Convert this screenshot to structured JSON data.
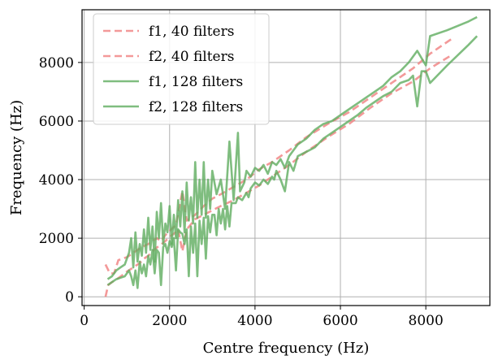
{
  "chart_data": {
    "type": "line",
    "xlabel": "Centre frequency (Hz)",
    "ylabel": "Frequency (Hz)",
    "xlim": [
      -50,
      9500
    ],
    "ylim": [
      -300,
      9800
    ],
    "xticks": [
      0,
      2000,
      4000,
      6000,
      8000
    ],
    "yticks": [
      0,
      2000,
      4000,
      6000,
      8000
    ],
    "xtick_labels": [
      "0",
      "2000",
      "4000",
      "6000",
      "8000"
    ],
    "ytick_labels": [
      "0",
      "2000",
      "4000",
      "6000",
      "8000"
    ],
    "grid": true,
    "legend_position": "top-left",
    "series": [
      {
        "name": "f1, 40 filters",
        "color": "#f08080",
        "style": "dashed",
        "points": [
          [
            500,
            0
          ],
          [
            560,
            400
          ],
          [
            650,
            500
          ],
          [
            760,
            600
          ],
          [
            880,
            720
          ],
          [
            1000,
            860
          ],
          [
            1150,
            1000
          ],
          [
            1300,
            1150
          ],
          [
            1400,
            1300
          ],
          [
            1500,
            1400
          ],
          [
            1600,
            1550
          ],
          [
            1700,
            1680
          ],
          [
            1800,
            1780
          ],
          [
            1900,
            1900
          ],
          [
            2000,
            2050
          ],
          [
            2100,
            2150
          ],
          [
            2200,
            2300
          ],
          [
            2300,
            1550
          ],
          [
            2400,
            2300
          ],
          [
            2600,
            2650
          ],
          [
            2800,
            2800
          ],
          [
            3000,
            2950
          ],
          [
            3200,
            3100
          ],
          [
            3500,
            3300
          ],
          [
            3800,
            3550
          ],
          [
            4100,
            3800
          ],
          [
            4400,
            4100
          ],
          [
            4800,
            4500
          ],
          [
            5200,
            4950
          ],
          [
            5700,
            5450
          ],
          [
            6200,
            5900
          ],
          [
            6700,
            6450
          ],
          [
            7200,
            6950
          ],
          [
            7700,
            7350
          ],
          [
            8100,
            7800
          ],
          [
            8600,
            8250
          ]
        ]
      },
      {
        "name": "f2, 40 filters",
        "color": "#f08080",
        "style": "dashed",
        "points": [
          [
            500,
            1100
          ],
          [
            600,
            800
          ],
          [
            700,
            800
          ],
          [
            800,
            1250
          ],
          [
            900,
            1300
          ],
          [
            1000,
            1350
          ],
          [
            1100,
            1450
          ],
          [
            1200,
            1550
          ],
          [
            1350,
            1700
          ],
          [
            1500,
            1800
          ],
          [
            1700,
            2000
          ],
          [
            1800,
            1900
          ],
          [
            1900,
            2100
          ],
          [
            2000,
            2250
          ],
          [
            2150,
            2450
          ],
          [
            2300,
            3600
          ],
          [
            2400,
            2600
          ],
          [
            2600,
            2800
          ],
          [
            2800,
            3100
          ],
          [
            3000,
            3350
          ],
          [
            3200,
            3500
          ],
          [
            3500,
            3750
          ],
          [
            3800,
            4000
          ],
          [
            4100,
            4350
          ],
          [
            4400,
            4600
          ],
          [
            4800,
            5000
          ],
          [
            5200,
            5450
          ],
          [
            5700,
            5900
          ],
          [
            6200,
            6300
          ],
          [
            6700,
            6800
          ],
          [
            7200,
            7300
          ],
          [
            7700,
            7800
          ],
          [
            8100,
            8300
          ],
          [
            8600,
            8800
          ]
        ]
      },
      {
        "name": "f1, 128 filters",
        "color": "#5fac5f",
        "style": "solid",
        "points": [
          [
            550,
            400
          ],
          [
            650,
            500
          ],
          [
            750,
            600
          ],
          [
            850,
            650
          ],
          [
            950,
            700
          ],
          [
            1050,
            900
          ],
          [
            1100,
            700
          ],
          [
            1150,
            400
          ],
          [
            1200,
            900
          ],
          [
            1250,
            300
          ],
          [
            1300,
            1200
          ],
          [
            1350,
            800
          ],
          [
            1400,
            1100
          ],
          [
            1450,
            700
          ],
          [
            1500,
            1400
          ],
          [
            1550,
            1100
          ],
          [
            1600,
            1600
          ],
          [
            1650,
            800
          ],
          [
            1700,
            1600
          ],
          [
            1750,
            1500
          ],
          [
            1800,
            400
          ],
          [
            1850,
            1700
          ],
          [
            1900,
            1800
          ],
          [
            1950,
            1500
          ],
          [
            2000,
            1900
          ],
          [
            2050,
            1700
          ],
          [
            2100,
            2000
          ],
          [
            2150,
            900
          ],
          [
            2200,
            2300
          ],
          [
            2250,
            2200
          ],
          [
            2300,
            2150
          ],
          [
            2350,
            1800
          ],
          [
            2400,
            2300
          ],
          [
            2450,
            700
          ],
          [
            2500,
            2400
          ],
          [
            2550,
            1500
          ],
          [
            2600,
            2500
          ],
          [
            2650,
            700
          ],
          [
            2700,
            2600
          ],
          [
            2750,
            1800
          ],
          [
            2800,
            2700
          ],
          [
            2850,
            1300
          ],
          [
            2900,
            2750
          ],
          [
            2950,
            2200
          ],
          [
            3000,
            2800
          ],
          [
            3050,
            2800
          ],
          [
            3100,
            2100
          ],
          [
            3150,
            3000
          ],
          [
            3200,
            2500
          ],
          [
            3250,
            3000
          ],
          [
            3300,
            2300
          ],
          [
            3350,
            3100
          ],
          [
            3400,
            2400
          ],
          [
            3450,
            3200
          ],
          [
            3550,
            3200
          ],
          [
            3600,
            3400
          ],
          [
            3700,
            3300
          ],
          [
            3800,
            3550
          ],
          [
            3850,
            3400
          ],
          [
            3900,
            3700
          ],
          [
            4000,
            3900
          ],
          [
            4100,
            3800
          ],
          [
            4200,
            4000
          ],
          [
            4300,
            3850
          ],
          [
            4400,
            4100
          ],
          [
            4450,
            4000
          ],
          [
            4500,
            4300
          ],
          [
            4600,
            4000
          ],
          [
            4700,
            3600
          ],
          [
            4800,
            4600
          ],
          [
            4900,
            4300
          ],
          [
            5000,
            4800
          ],
          [
            5200,
            4950
          ],
          [
            5400,
            5100
          ],
          [
            5600,
            5400
          ],
          [
            5800,
            5600
          ],
          [
            6000,
            5800
          ],
          [
            6200,
            6000
          ],
          [
            6400,
            6200
          ],
          [
            6600,
            6450
          ],
          [
            6800,
            6650
          ],
          [
            7000,
            6850
          ],
          [
            7200,
            7000
          ],
          [
            7400,
            7300
          ],
          [
            7600,
            7400
          ],
          [
            7700,
            7550
          ],
          [
            7800,
            6500
          ],
          [
            7900,
            7700
          ],
          [
            8000,
            7700
          ],
          [
            8100,
            7300
          ],
          [
            8500,
            7900
          ],
          [
            9000,
            8600
          ],
          [
            9200,
            8900
          ]
        ]
      },
      {
        "name": "f2, 128 filters",
        "color": "#5fac5f",
        "style": "solid",
        "points": [
          [
            550,
            600
          ],
          [
            650,
            700
          ],
          [
            750,
            900
          ],
          [
            850,
            1000
          ],
          [
            950,
            1100
          ],
          [
            1050,
            1500
          ],
          [
            1100,
            2000
          ],
          [
            1150,
            1000
          ],
          [
            1200,
            2200
          ],
          [
            1250,
            1200
          ],
          [
            1300,
            1800
          ],
          [
            1350,
            1400
          ],
          [
            1400,
            2300
          ],
          [
            1450,
            1500
          ],
          [
            1500,
            2700
          ],
          [
            1550,
            1600
          ],
          [
            1600,
            2400
          ],
          [
            1650,
            1200
          ],
          [
            1700,
            2900
          ],
          [
            1750,
            2000
          ],
          [
            1800,
            3200
          ],
          [
            1850,
            1800
          ],
          [
            1900,
            2500
          ],
          [
            1950,
            2200
          ],
          [
            2000,
            3100
          ],
          [
            2050,
            1800
          ],
          [
            2100,
            2800
          ],
          [
            2150,
            2000
          ],
          [
            2200,
            3300
          ],
          [
            2250,
            2400
          ],
          [
            2300,
            3600
          ],
          [
            2350,
            2200
          ],
          [
            2400,
            3900
          ],
          [
            2450,
            2600
          ],
          [
            2500,
            3400
          ],
          [
            2550,
            2500
          ],
          [
            2600,
            4600
          ],
          [
            2650,
            2700
          ],
          [
            2700,
            4000
          ],
          [
            2750,
            2800
          ],
          [
            2800,
            4600
          ],
          [
            2850,
            2700
          ],
          [
            2900,
            4000
          ],
          [
            2950,
            3000
          ],
          [
            3000,
            4300
          ],
          [
            3100,
            3500
          ],
          [
            3200,
            4000
          ],
          [
            3300,
            3000
          ],
          [
            3400,
            5300
          ],
          [
            3500,
            3300
          ],
          [
            3600,
            5600
          ],
          [
            3650,
            3600
          ],
          [
            3750,
            3900
          ],
          [
            3800,
            4300
          ],
          [
            3900,
            4100
          ],
          [
            4000,
            4400
          ],
          [
            4100,
            4300
          ],
          [
            4200,
            4500
          ],
          [
            4300,
            4200
          ],
          [
            4400,
            4600
          ],
          [
            4500,
            4500
          ],
          [
            4600,
            4700
          ],
          [
            4700,
            4400
          ],
          [
            4800,
            4800
          ],
          [
            4900,
            5000
          ],
          [
            5000,
            5200
          ],
          [
            5200,
            5400
          ],
          [
            5400,
            5700
          ],
          [
            5600,
            5900
          ],
          [
            5800,
            6000
          ],
          [
            6000,
            6200
          ],
          [
            6200,
            6400
          ],
          [
            6400,
            6600
          ],
          [
            6600,
            6800
          ],
          [
            6800,
            7000
          ],
          [
            7000,
            7200
          ],
          [
            7200,
            7500
          ],
          [
            7400,
            7700
          ],
          [
            7600,
            8000
          ],
          [
            7800,
            8400
          ],
          [
            8000,
            7900
          ],
          [
            8100,
            8900
          ],
          [
            8500,
            9100
          ],
          [
            9000,
            9400
          ],
          [
            9200,
            9550
          ]
        ]
      }
    ]
  }
}
